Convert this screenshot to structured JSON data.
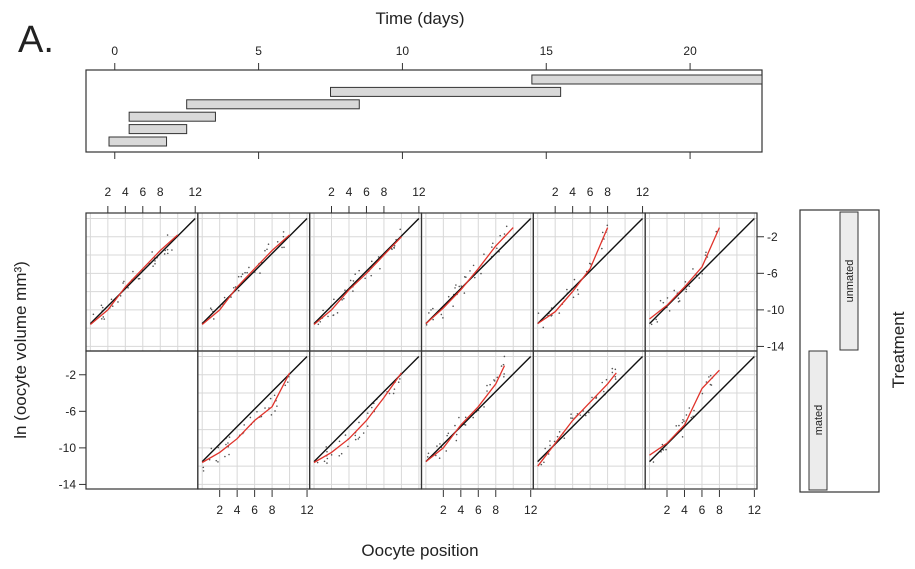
{
  "panel_letter": "A.",
  "chart_data": [
    {
      "type": "gantt",
      "xlabel": "Time (days)",
      "xlim": [
        -1,
        22.5
      ],
      "xticks": [
        0,
        5,
        10,
        15,
        20
      ],
      "intervals": [
        {
          "start": 14.5,
          "end": 22.5
        },
        {
          "start": 7.5,
          "end": 15.5
        },
        {
          "start": 2.5,
          "end": 8.5
        },
        {
          "start": 0.5,
          "end": 3.5
        },
        {
          "start": 0.5,
          "end": 2.5
        },
        {
          "start": -0.2,
          "end": 1.8
        }
      ]
    },
    {
      "type": "scatter",
      "xlabel": "Oocyte position",
      "ylabel": "ln (oocyte volume  mm³)",
      "xlim": [
        -0.5,
        12.3
      ],
      "ylim": [
        -14.5,
        0.6
      ],
      "xticks": [
        2,
        4,
        6,
        8,
        12
      ],
      "yticks": [
        -2,
        -6,
        -10,
        -14
      ],
      "strip_label": "Treatment",
      "groups": [
        {
          "name": "unmated",
          "row": "top"
        },
        {
          "name": "mated",
          "row": "bottom"
        }
      ],
      "reference_line": {
        "x": [
          0,
          12
        ],
        "y": [
          -11.5,
          0
        ]
      },
      "panels": [
        {
          "row": "top",
          "col": 1,
          "fit": [
            [
              0,
              -11.6
            ],
            [
              2,
              -10
            ],
            [
              4,
              -7.5
            ],
            [
              6,
              -5.5
            ],
            [
              8,
              -3.5
            ],
            [
              10,
              -1.8
            ]
          ]
        },
        {
          "row": "top",
          "col": 2,
          "fit": [
            [
              0,
              -11.6
            ],
            [
              2,
              -10
            ],
            [
              4,
              -7.5
            ],
            [
              6,
              -5.5
            ],
            [
              8,
              -3.5
            ],
            [
              10,
              -1.8
            ]
          ]
        },
        {
          "row": "top",
          "col": 3,
          "fit": [
            [
              0,
              -11.6
            ],
            [
              2,
              -10
            ],
            [
              4,
              -7.8
            ],
            [
              6,
              -6
            ],
            [
              8,
              -4
            ],
            [
              10,
              -2
            ]
          ]
        },
        {
          "row": "top",
          "col": 4,
          "fit": [
            [
              0,
              -11.5
            ],
            [
              2,
              -9.8
            ],
            [
              4,
              -7.8
            ],
            [
              6,
              -5.5
            ],
            [
              8,
              -3
            ],
            [
              10,
              -1
            ]
          ]
        },
        {
          "row": "top",
          "col": 5,
          "fit": [
            [
              0,
              -11.5
            ],
            [
              2,
              -10.2
            ],
            [
              4,
              -8
            ],
            [
              6,
              -5.5
            ],
            [
              8,
              -1
            ]
          ]
        },
        {
          "row": "top",
          "col": 6,
          "fit": [
            [
              0,
              -11
            ],
            [
              2,
              -9.5
            ],
            [
              4,
              -7.5
            ],
            [
              6,
              -5.3
            ],
            [
              8,
              -1
            ]
          ]
        },
        {
          "row": "bottom",
          "col": 2,
          "fit": [
            [
              0,
              -11.6
            ],
            [
              2,
              -10.5
            ],
            [
              4,
              -9
            ],
            [
              6,
              -7
            ],
            [
              8,
              -5.5
            ],
            [
              10,
              -1.8
            ]
          ]
        },
        {
          "row": "bottom",
          "col": 3,
          "fit": [
            [
              0,
              -11.6
            ],
            [
              2,
              -10.5
            ],
            [
              4,
              -9
            ],
            [
              6,
              -7
            ],
            [
              8,
              -4.5
            ],
            [
              10,
              -1.8
            ]
          ]
        },
        {
          "row": "bottom",
          "col": 4,
          "fit": [
            [
              0,
              -11.5
            ],
            [
              2,
              -10
            ],
            [
              4,
              -7.5
            ],
            [
              6,
              -5.5
            ],
            [
              8,
              -3
            ],
            [
              9,
              -1
            ]
          ]
        },
        {
          "row": "bottom",
          "col": 5,
          "fit": [
            [
              0,
              -12
            ],
            [
              2,
              -9.5
            ],
            [
              4,
              -7
            ],
            [
              6,
              -5
            ],
            [
              8,
              -3
            ],
            [
              9,
              -1.8
            ]
          ]
        },
        {
          "row": "bottom",
          "col": 6,
          "fit": [
            [
              0,
              -10.8
            ],
            [
              2,
              -9.5
            ],
            [
              4,
              -7.5
            ],
            [
              6,
              -3.5
            ],
            [
              8,
              -1.5
            ]
          ]
        }
      ]
    }
  ]
}
